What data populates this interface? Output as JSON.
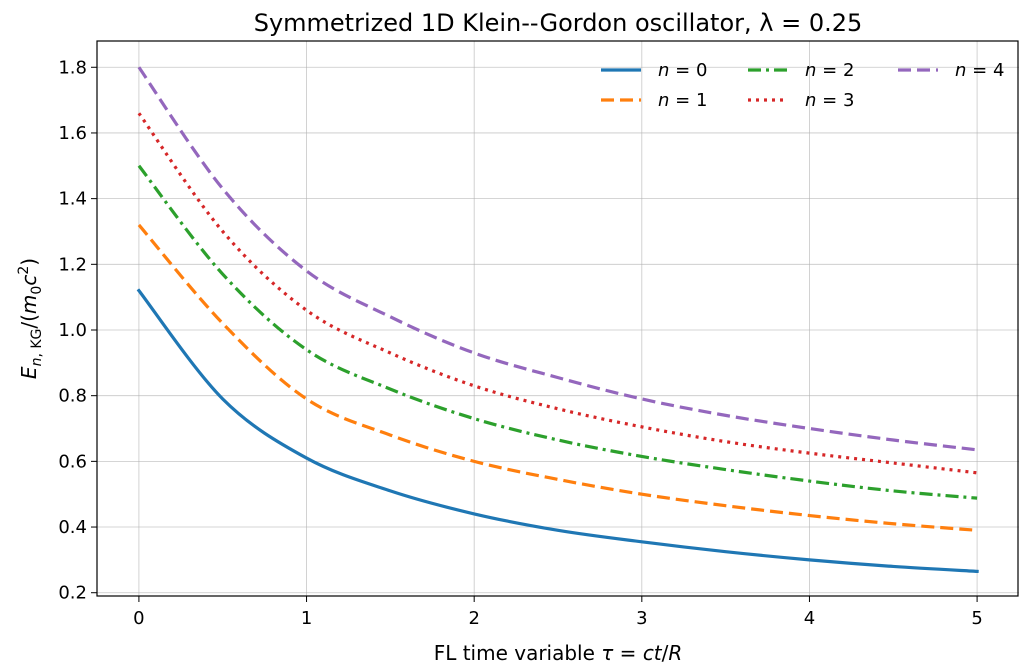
{
  "chart_data": {
    "type": "line",
    "title": "Symmetrized 1D Klein--Gordon oscillator, λ = 0.25",
    "xlabel": "FL time variable τ = ct/R",
    "ylabel": "E_{n,KG}/(m_0 c^2)",
    "xlim": [
      -0.25,
      5.25
    ],
    "ylim": [
      0.19,
      1.88
    ],
    "xticks": [
      0,
      1,
      2,
      3,
      4,
      5
    ],
    "yticks": [
      0.2,
      0.4,
      0.6,
      0.8,
      1.0,
      1.2,
      1.4,
      1.6,
      1.8
    ],
    "xtick_labels": [
      "0",
      "1",
      "2",
      "3",
      "4",
      "5"
    ],
    "ytick_labels": [
      "0.2",
      "0.4",
      "0.6",
      "0.8",
      "1.0",
      "1.2",
      "1.4",
      "1.6",
      "1.8"
    ],
    "grid": true,
    "legend_position": "top-right",
    "x": [
      0,
      0.5,
      1,
      1.5,
      2,
      2.5,
      3,
      3.5,
      4,
      4.5,
      5
    ],
    "series": [
      {
        "name": "n = 0",
        "color": "#1f77b4",
        "dash": "solid",
        "values": [
          1.12,
          0.79,
          0.61,
          0.51,
          0.44,
          0.39,
          0.355,
          0.325,
          0.3,
          0.28,
          0.265
        ]
      },
      {
        "name": "n = 1",
        "color": "#ff7f0e",
        "dash": "dashed",
        "values": [
          1.32,
          1.02,
          0.79,
          0.68,
          0.6,
          0.545,
          0.5,
          0.465,
          0.435,
          0.41,
          0.39
        ]
      },
      {
        "name": "n = 2",
        "color": "#2ca02c",
        "dash": "dashdot",
        "values": [
          1.5,
          1.17,
          0.94,
          0.82,
          0.73,
          0.665,
          0.615,
          0.575,
          0.54,
          0.51,
          0.488
        ]
      },
      {
        "name": "n = 3",
        "color": "#d62728",
        "dash": "dotted",
        "values": [
          1.66,
          1.3,
          1.06,
          0.93,
          0.83,
          0.76,
          0.705,
          0.66,
          0.625,
          0.595,
          0.565
        ]
      },
      {
        "name": "n = 4",
        "color": "#9467bd",
        "dash": "dashed",
        "values": [
          1.8,
          1.43,
          1.18,
          1.04,
          0.93,
          0.855,
          0.79,
          0.74,
          0.7,
          0.665,
          0.635
        ]
      }
    ]
  }
}
